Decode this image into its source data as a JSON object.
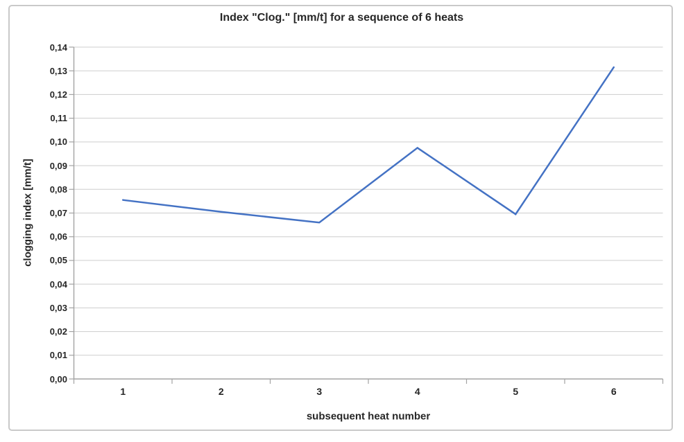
{
  "chart_data": {
    "type": "line",
    "title": "Index \"Clog.\" [mm/t] for a sequence of 6 heats",
    "xlabel": "subsequent heat number",
    "ylabel": "clogging index [mm/t]",
    "categories": [
      "1",
      "2",
      "3",
      "4",
      "5",
      "6"
    ],
    "values": [
      0.0755,
      0.0705,
      0.066,
      0.0975,
      0.0695,
      0.1315
    ],
    "ylim": [
      0,
      0.14
    ],
    "ytick_step": 0.01,
    "ytick_labels": [
      "0,00",
      "0,01",
      "0,02",
      "0,03",
      "0,04",
      "0,05",
      "0,06",
      "0,07",
      "0,08",
      "0,09",
      "0,10",
      "0,11",
      "0,12",
      "0,13",
      "0,14"
    ],
    "decimal_separator": ",",
    "grid": "horizontal",
    "legend": "none",
    "markers": "none",
    "colors": {
      "line": "#4472C4",
      "gridline": "#cdcdcd",
      "axis": "#a3a3a3",
      "text": "#262626",
      "frame_border": "#c9c9c9",
      "background": "#ffffff"
    }
  }
}
